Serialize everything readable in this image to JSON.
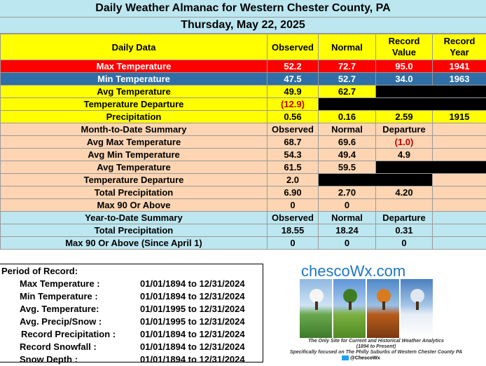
{
  "header": {
    "title": "Daily Weather Almanac for Western Chester County, PA",
    "date": "Thursday, May 22, 2025"
  },
  "daily": {
    "columns": [
      "Daily Data",
      "Observed",
      "Normal",
      "Record Value",
      "Record Year"
    ],
    "rows": [
      {
        "label": "Max Temperature",
        "observed": "52.2",
        "normal": "72.7",
        "record": "95.0",
        "year": "1941"
      },
      {
        "label": "Min Temperature",
        "observed": "47.5",
        "normal": "52.7",
        "record": "34.0",
        "year": "1963"
      },
      {
        "label": "Avg Temperature",
        "observed": "49.9",
        "normal": "62.7"
      },
      {
        "label": "Temperature Departure",
        "observed": "(12.9)"
      },
      {
        "label": "Precipitation",
        "observed": "0.56",
        "normal": "0.16",
        "record": "2.59",
        "year": "1915"
      }
    ]
  },
  "mtd": {
    "columns": [
      "Month-to-Date Summary",
      "Observed",
      "Normal",
      "Departure"
    ],
    "rows": [
      {
        "label": "Avg Max Temperature",
        "observed": "68.7",
        "normal": "69.6",
        "departure": "(1.0)"
      },
      {
        "label": "Avg Min Temperature",
        "observed": "54.3",
        "normal": "49.4",
        "departure": "4.9"
      },
      {
        "label": "Avg Temperature",
        "observed": "61.5",
        "normal": "59.5"
      },
      {
        "label": "Temperature Departure",
        "observed": "2.0"
      },
      {
        "label": "Total Precipitation",
        "observed": "6.90",
        "normal": "2.70",
        "departure": "4.20"
      },
      {
        "label": "Max 90 Or Above",
        "observed": "0",
        "normal": "0"
      }
    ]
  },
  "ytd": {
    "columns": [
      "Year-to-Date Summary",
      "Observed",
      "Normal",
      "Departure"
    ],
    "rows": [
      {
        "label": "Total Precipitation",
        "observed": "18.55",
        "normal": "18.24",
        "departure": "0.31"
      },
      {
        "label": "Max 90 Or Above (Since April 1)",
        "observed": "0",
        "normal": "0",
        "departure": "0"
      }
    ]
  },
  "period": {
    "title": "Period of Record:",
    "rows": [
      {
        "label": "Max Temperature :",
        "range": "01/01/1894 to 12/31/2024"
      },
      {
        "label": "Min Temperature :",
        "range": "01/01/1894 to 12/31/2024"
      },
      {
        "label": "Avg. Temperature:",
        "range": "01/01/1995 to 12/31/2024"
      },
      {
        "label": "Avg. Precip/Snow :",
        "range": "01/01/1995 to 12/31/2024"
      },
      {
        "label": "Record Precipitation :",
        "range": "01/01/1894 to 12/31/2024"
      },
      {
        "label": "Record Snowfall :",
        "range": "01/01/1894 to 12/31/2024"
      },
      {
        "label": "Snow Depth :",
        "range": "01/01/1894 to 12/31/2024"
      }
    ]
  },
  "ad": {
    "brand": "chescoWx.com",
    "line1": "The Only Site for Current and Historical Weather Analytics",
    "line2": "(1894 to Present)",
    "line3": "Specifically focused on The Philly Suburbs of Western Chester County PA",
    "handle": "@ChescoWx"
  },
  "colors": {
    "header_bg": "#bde7f0",
    "max_row": "#ff0000",
    "min_row": "#2f6ea6",
    "daily_bg": "#ffff00",
    "summary_bg": "#fdd5b3",
    "negative": "#c00000",
    "brand": "#1f76c4"
  }
}
